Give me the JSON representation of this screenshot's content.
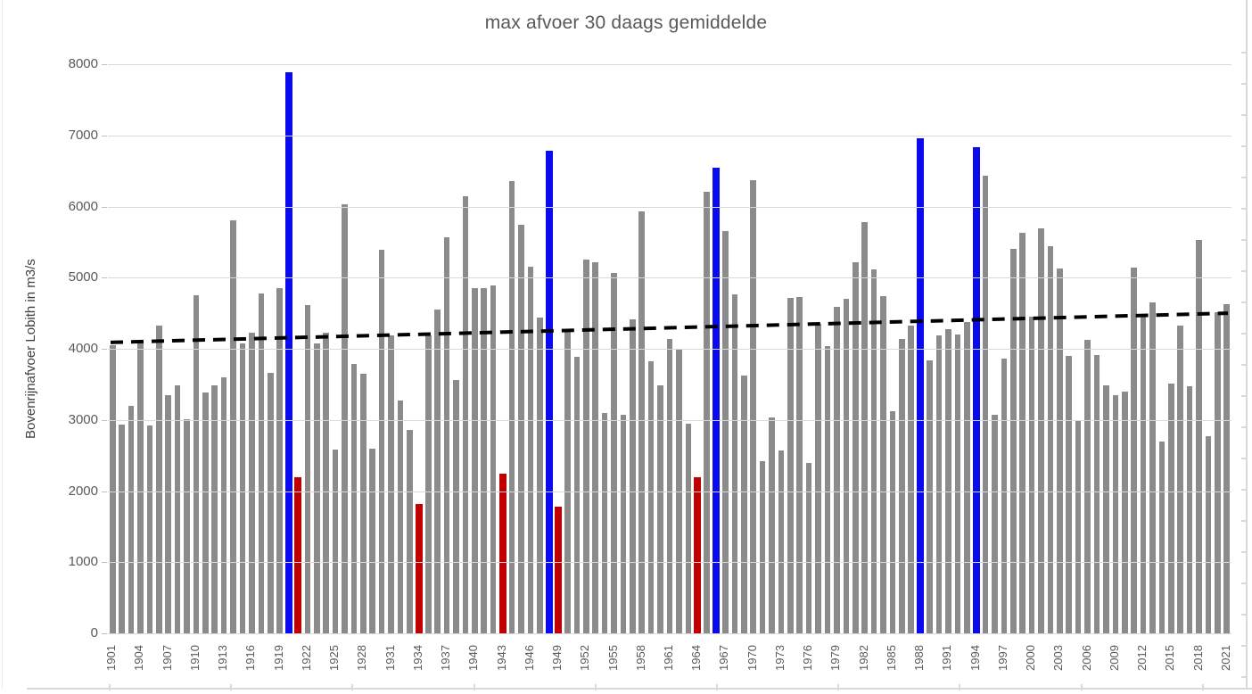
{
  "chart_data": {
    "type": "bar",
    "title": "max afvoer 30 daags gemiddelde",
    "xlabel": "",
    "ylabel": "Bovenrijnafvoer Lobith in m3/s",
    "ylim": [
      0,
      8000
    ],
    "yticks": [
      0,
      1000,
      2000,
      3000,
      4000,
      5000,
      6000,
      7000,
      8000
    ],
    "grid": "horizontal",
    "legend_position": "none",
    "start_year": 1901,
    "end_year": 2021,
    "x_label_interval": 3,
    "x_tick_labels": [
      "1901",
      "1904",
      "1907",
      "1910",
      "1913",
      "1916",
      "1919",
      "1922",
      "1925",
      "1928",
      "1931",
      "1934",
      "1937",
      "1940",
      "1943",
      "1946",
      "1949",
      "1952",
      "1955",
      "1958",
      "1961",
      "1964",
      "1967",
      "1970",
      "1973",
      "1976",
      "1979",
      "1982",
      "1985",
      "1988",
      "1991",
      "1994",
      "1997",
      "2000",
      "2003",
      "2006",
      "2009",
      "2012",
      "2015",
      "2018",
      "2021"
    ],
    "values": [
      4050,
      2930,
      3200,
      4110,
      2920,
      4330,
      3350,
      3490,
      3010,
      4750,
      3380,
      3480,
      3600,
      5800,
      4070,
      4220,
      4780,
      3660,
      4850,
      7890,
      2200,
      4620,
      4080,
      4220,
      2580,
      6030,
      3790,
      3650,
      2590,
      5390,
      4190,
      3270,
      2860,
      1820,
      4190,
      4550,
      5570,
      3560,
      6150,
      4850,
      4850,
      4890,
      2250,
      6360,
      5740,
      5160,
      4440,
      6790,
      1780,
      4240,
      3890,
      5250,
      5220,
      3100,
      5070,
      3070,
      4420,
      5930,
      3820,
      3490,
      4140,
      4000,
      2950,
      2200,
      6210,
      6540,
      5650,
      4770,
      3620,
      6370,
      2420,
      3030,
      2570,
      4710,
      4730,
      2390,
      4350,
      4040,
      4590,
      4700,
      5220,
      5780,
      5120,
      4740,
      3120,
      4140,
      4330,
      6960,
      3840,
      4190,
      4280,
      4200,
      4380,
      6840,
      6430,
      3070,
      3860,
      5400,
      5630,
      4450,
      5690,
      5440,
      5130,
      3900,
      2980,
      4120,
      3910,
      3490,
      3350,
      3400,
      5140,
      4450,
      4650,
      2690,
      3510,
      4320,
      3470,
      5530,
      2770,
      4510,
      4630
    ],
    "blue_years": [
      1920,
      1948,
      1966,
      1988,
      1994
    ],
    "red_years": [
      1921,
      1934,
      1943,
      1949,
      1964
    ],
    "trend": {
      "style": "dashed",
      "color": "#000000",
      "start_value": 4090,
      "end_value": 4500
    }
  },
  "colors": {
    "bar_default": "#8b8b8b",
    "bar_blue": "#0a0aee",
    "bar_red": "#c00000",
    "gridline": "#d9d9d9",
    "axis_text": "#595959",
    "title_text": "#595959",
    "trend_line": "#000000"
  }
}
